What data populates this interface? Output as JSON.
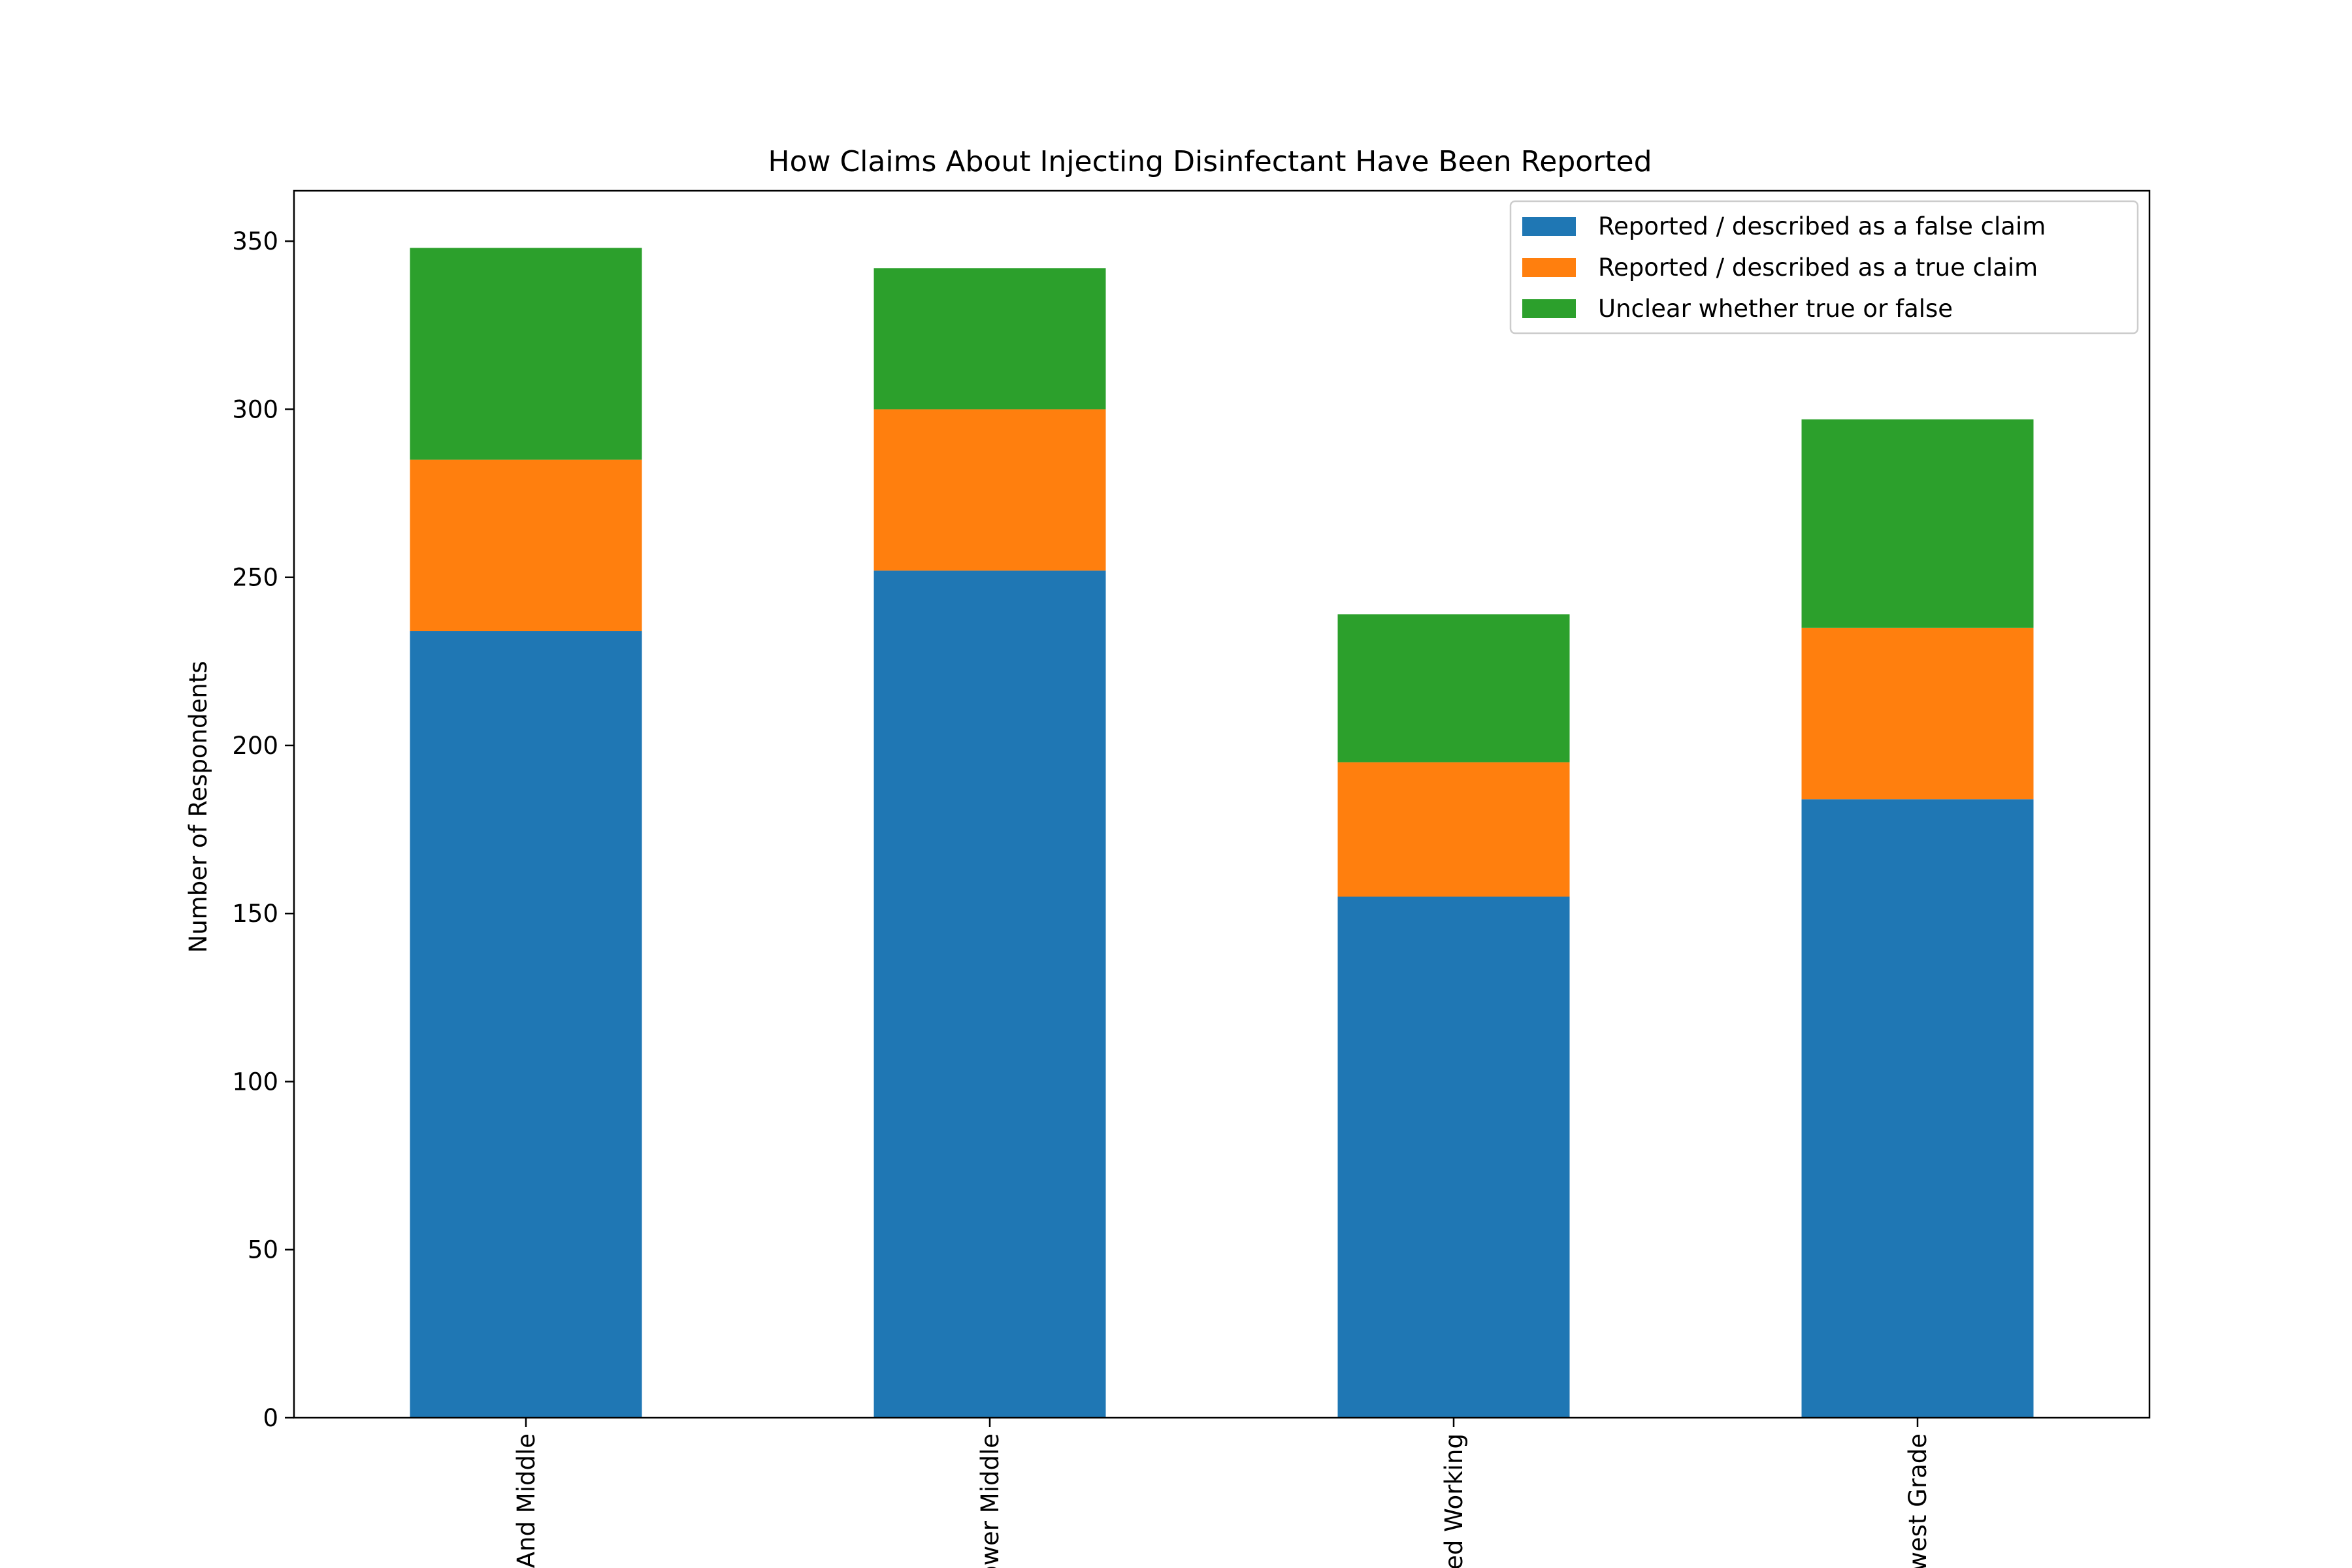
{
  "chart_data": {
    "type": "bar",
    "stacked": true,
    "title": "How Claims About Injecting Disinfectant Have Been Reported",
    "xlabel": "",
    "ylabel": "Number of Respondents",
    "categories": [
      "And Middle",
      "ower Middle",
      "ed Working",
      "west Grade"
    ],
    "series": [
      {
        "name": "Reported / described as a false claim",
        "color": "#1f77b4",
        "values": [
          234,
          252,
          155,
          184
        ]
      },
      {
        "name": "Reported / described as a true claim",
        "color": "#ff7f0e",
        "values": [
          51,
          48,
          40,
          51
        ]
      },
      {
        "name": "Unclear whether true or false",
        "color": "#2ca02c",
        "values": [
          63,
          42,
          44,
          62
        ]
      }
    ],
    "ylim": [
      0,
      365
    ],
    "yticks": [
      0,
      50,
      100,
      150,
      200,
      250,
      300,
      350
    ],
    "grid": false,
    "legend_position": "upper right"
  }
}
